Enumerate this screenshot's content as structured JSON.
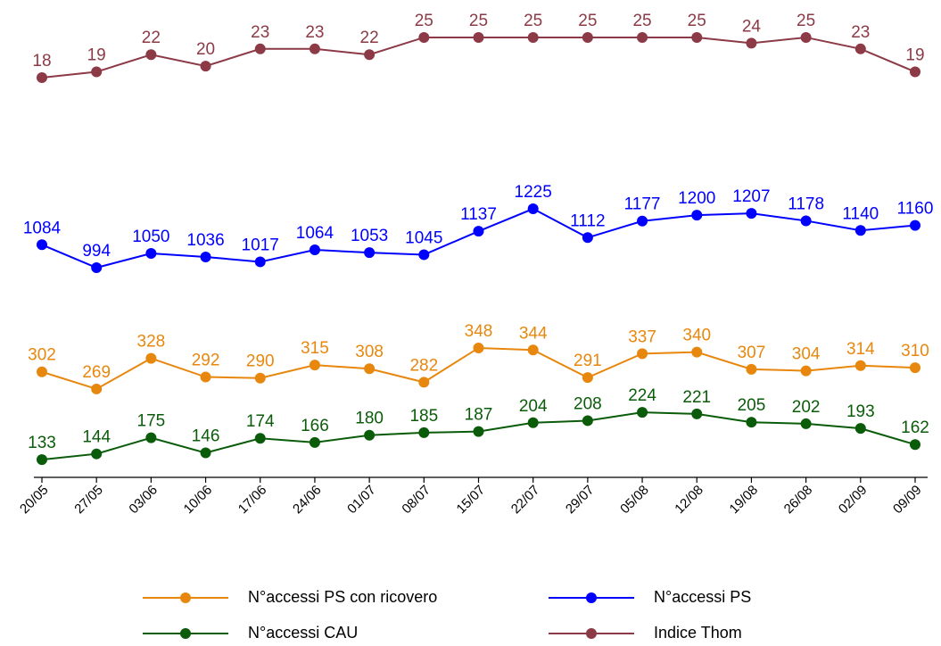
{
  "chart_data": {
    "type": "line",
    "categories": [
      "20/05",
      "27/05",
      "03/06",
      "10/06",
      "17/06",
      "24/06",
      "01/07",
      "08/07",
      "15/07",
      "22/07",
      "29/07",
      "05/08",
      "12/08",
      "19/08",
      "26/08",
      "02/09",
      "09/09"
    ],
    "series": [
      {
        "name": "N°accessi PS con ricovero",
        "color": "#e8870e",
        "values": [
          302,
          269,
          328,
          292,
          290,
          315,
          308,
          282,
          348,
          344,
          291,
          337,
          340,
          307,
          304,
          314,
          310
        ]
      },
      {
        "name": "N°accessi PS",
        "color": "#0000ff",
        "values": [
          1084,
          994,
          1050,
          1036,
          1017,
          1064,
          1053,
          1045,
          1137,
          1225,
          1112,
          1177,
          1200,
          1207,
          1178,
          1140,
          1160
        ]
      },
      {
        "name": "N°accessi CAU",
        "color": "#0a5c0a",
        "values": [
          133,
          144,
          175,
          146,
          174,
          166,
          180,
          185,
          187,
          204,
          208,
          224,
          221,
          205,
          202,
          193,
          162
        ]
      },
      {
        "name": "Indice Thom",
        "color": "#8c3a46",
        "values": [
          18,
          19,
          22,
          20,
          23,
          23,
          22,
          25,
          25,
          25,
          25,
          25,
          25,
          24,
          25,
          23,
          19
        ]
      }
    ]
  }
}
